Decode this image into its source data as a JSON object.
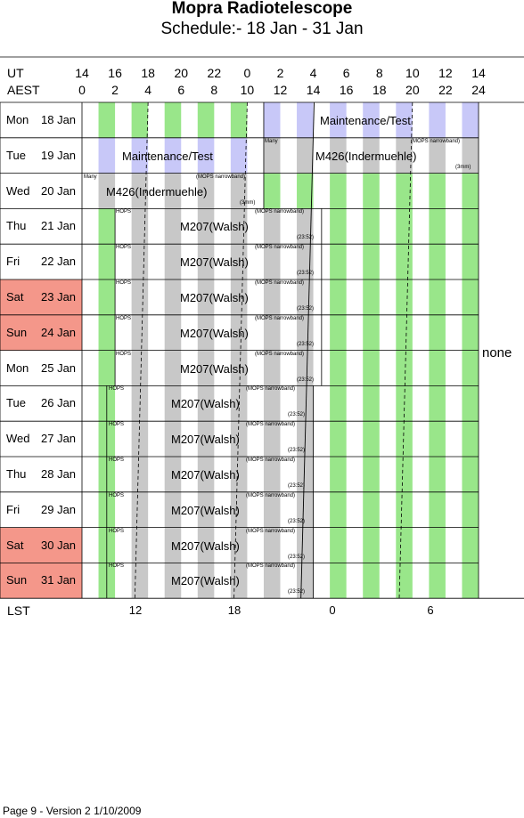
{
  "title": "Mopra Radiotelescope",
  "subtitle": "Schedule:- 18 Jan - 31 Jan",
  "header": {
    "ut_label": "UT",
    "aest_label": "AEST",
    "ut_hours": [
      "14",
      "16",
      "18",
      "20",
      "22",
      "0",
      "2",
      "4",
      "6",
      "8",
      "10",
      "12",
      "14"
    ],
    "aest_hours": [
      "0",
      "2",
      "4",
      "6",
      "8",
      "10",
      "12",
      "14",
      "16",
      "18",
      "20",
      "22",
      "24"
    ]
  },
  "days": [
    {
      "day": "Mon",
      "date": "18 Jan",
      "weekend": false
    },
    {
      "day": "Tue",
      "date": "19 Jan",
      "weekend": false
    },
    {
      "day": "Wed",
      "date": "20 Jan",
      "weekend": false
    },
    {
      "day": "Thu",
      "date": "21 Jan",
      "weekend": false
    },
    {
      "day": "Fri",
      "date": "22 Jan",
      "weekend": false
    },
    {
      "day": "Sat",
      "date": "23 Jan",
      "weekend": true
    },
    {
      "day": "Sun",
      "date": "24 Jan",
      "weekend": true
    },
    {
      "day": "Mon",
      "date": "25 Jan",
      "weekend": false
    },
    {
      "day": "Tue",
      "date": "26 Jan",
      "weekend": false
    },
    {
      "day": "Wed",
      "date": "27 Jan",
      "weekend": false
    },
    {
      "day": "Thu",
      "date": "28 Jan",
      "weekend": false
    },
    {
      "day": "Fri",
      "date": "29 Jan",
      "weekend": false
    },
    {
      "day": "Sat",
      "date": "30 Jan",
      "weekend": true
    },
    {
      "day": "Sun",
      "date": "31 Jan",
      "weekend": true
    }
  ],
  "labels": {
    "maintenance": "Maintenance/Test",
    "m426": "M426(Indermuehle)",
    "m207": "M207(Walsh)",
    "hops": "HOPS",
    "mops": "(MOPS narrowband)",
    "many": "Many",
    "three_mm": "(3mm)",
    "time_2352": "(23:52)",
    "none": "none"
  },
  "lst": {
    "label": "LST",
    "ticks": [
      "12",
      "18",
      "0",
      "6"
    ]
  },
  "footer": "Page 9 - Version 2  1/10/2009",
  "colors": {
    "green": "#99e68a",
    "grey": "#c8c8c8",
    "lavender": "#c8c8f8",
    "weekend": "#f4978a"
  }
}
